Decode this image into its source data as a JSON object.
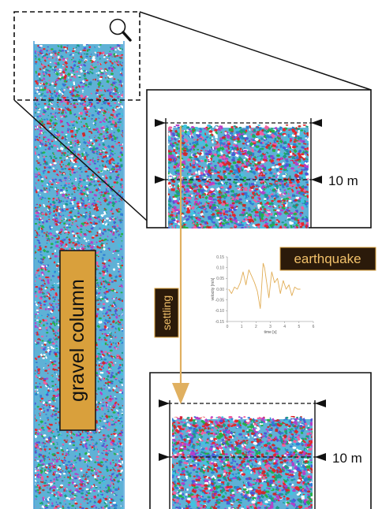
{
  "labels": {
    "column": "gravel column",
    "settling": "settling",
    "earthquake": "earthquake",
    "depth_top": "10 m",
    "depth_bottom": "10 m"
  },
  "icons": {
    "zoom": "magnifier-icon"
  },
  "colors": {
    "label_fill": "#d9a03c",
    "label_border": "#1a1a1a",
    "label_text": "#111111",
    "earthquake_fill": "#2b1a0a",
    "earthquake_text": "#f1c06a",
    "settling_arrow": "#e0b060",
    "trace": "#e1ad55",
    "particle_palette": [
      "#e5262d",
      "#25b14a",
      "#3fc4e0",
      "#4e57d6",
      "#b63fc8",
      "#ffffff",
      "#f05f9e",
      "#1c9a8a",
      "#c92b2b",
      "#2f7fd4"
    ]
  },
  "chart_data": {
    "type": "line",
    "xlabel": "time [s]",
    "ylabel": "velocity [m/s]",
    "xlim": [
      0,
      6
    ],
    "ylim": [
      -0.15,
      0.15
    ],
    "x_ticks": [
      "0",
      "1",
      "2",
      "3",
      "4",
      "5",
      "6"
    ],
    "y_ticks": [
      "0.15",
      "0.10",
      "0.05",
      "0.00",
      "-0.05",
      "-0.10",
      "-0.15"
    ],
    "grid": false,
    "x": [
      0.1,
      0.3,
      0.5,
      0.7,
      0.9,
      1.1,
      1.3,
      1.5,
      1.7,
      1.9,
      2.1,
      2.3,
      2.5,
      2.6,
      2.7,
      2.9,
      3.1,
      3.3,
      3.5,
      3.7,
      3.9,
      4.1,
      4.3,
      4.5,
      4.7,
      4.9,
      5.1
    ],
    "y": [
      0.0,
      -0.02,
      0.01,
      0.0,
      0.03,
      0.08,
      0.02,
      0.09,
      0.06,
      0.03,
      -0.01,
      -0.09,
      0.12,
      0.1,
      0.05,
      -0.04,
      0.08,
      0.03,
      0.05,
      -0.02,
      0.04,
      0.0,
      0.02,
      -0.03,
      0.01,
      0.0,
      0.0
    ]
  }
}
